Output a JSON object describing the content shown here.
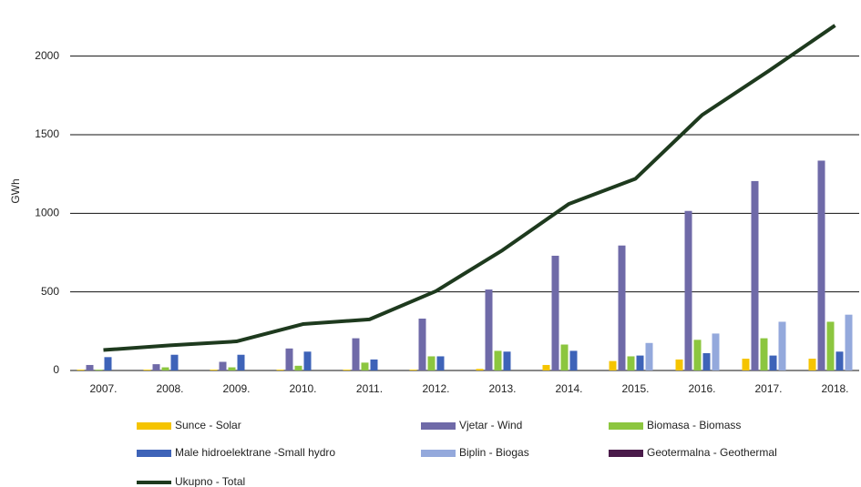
{
  "chart_data": {
    "type": "bar_line",
    "y_label": "GWh",
    "categories": [
      "2007.",
      "2008.",
      "2009.",
      "2010.",
      "2011.",
      "2012.",
      "2013.",
      "2014.",
      "2015.",
      "2016.",
      "2017.",
      "2018."
    ],
    "series": [
      {
        "name": "Sunce - Solar",
        "color": "#f5c400",
        "values": [
          5,
          5,
          5,
          5,
          5,
          5,
          10,
          35,
          60,
          70,
          75,
          75
        ]
      },
      {
        "name": "Vjetar - Wind",
        "color": "#6f6aa8",
        "values": [
          35,
          40,
          55,
          140,
          205,
          330,
          515,
          730,
          795,
          1015,
          1205,
          1335
        ]
      },
      {
        "name": "Biomasa - Biomass",
        "color": "#8cc63f",
        "values": [
          5,
          20,
          20,
          30,
          50,
          90,
          125,
          165,
          90,
          195,
          205,
          310
        ]
      },
      {
        "name": "Male hidroelektrane -Small hydro",
        "color": "#3e63b8",
        "values": [
          85,
          100,
          100,
          120,
          70,
          90,
          120,
          125,
          95,
          110,
          95,
          120
        ]
      },
      {
        "name": "Biplin - Biogas",
        "color": "#94a9dc",
        "values": [
          0,
          0,
          0,
          0,
          0,
          0,
          0,
          0,
          175,
          235,
          310,
          355
        ]
      },
      {
        "name": "Geotermalna - Geothermal",
        "color": "#4a1a4a",
        "values": [
          0,
          0,
          0,
          0,
          0,
          0,
          0,
          0,
          0,
          0,
          0,
          0
        ]
      },
      {
        "name": "Ukupno - Total",
        "color": "#1e3a1e",
        "kind": "line",
        "values": [
          130,
          160,
          185,
          295,
          325,
          505,
          765,
          1060,
          1220,
          1625,
          1905,
          2195
        ]
      }
    ],
    "ylim": [
      0,
      2270
    ],
    "yticks": [
      0,
      500,
      1000,
      1500,
      2000
    ],
    "grid": true
  }
}
